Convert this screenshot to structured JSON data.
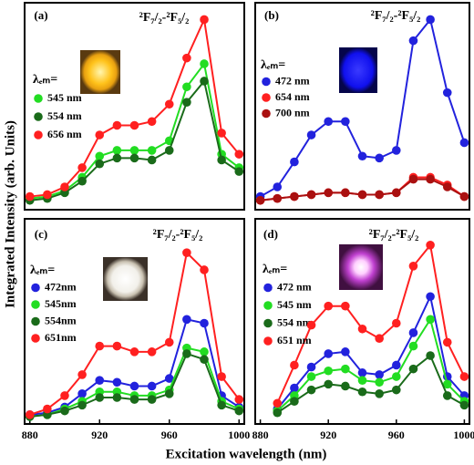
{
  "chart_data": [
    {
      "type": "line",
      "label": "(a)",
      "annotation": "²F₇/₂-²F₅/₂",
      "legend_title": "λₑₘ=",
      "x": [
        880,
        890,
        900,
        910,
        920,
        930,
        940,
        950,
        960,
        970,
        980,
        990,
        1000
      ],
      "xlim": [
        877,
        1003
      ],
      "ylim": [
        0,
        100
      ],
      "series": [
        {
          "name": "545 nm",
          "color": "#22dd22",
          "values": [
            3,
            4,
            7,
            14,
            25,
            28,
            28,
            28,
            33,
            61,
            73,
            26,
            19
          ]
        },
        {
          "name": "554 nm",
          "color": "#1a6b1a",
          "values": [
            2,
            3,
            6,
            12,
            21,
            24,
            24,
            23,
            28,
            53,
            64,
            23,
            17
          ]
        },
        {
          "name": "656 nm",
          "color": "#ff2020",
          "values": [
            4,
            5,
            9,
            19,
            36,
            41,
            41,
            43,
            52,
            76,
            96,
            37,
            26
          ]
        }
      ]
    },
    {
      "type": "line",
      "label": "(b)",
      "annotation": "²F₇/₂-²F₅/₂",
      "legend_title": "λₑₘ=",
      "x": [
        880,
        890,
        900,
        910,
        920,
        930,
        940,
        950,
        960,
        970,
        980,
        990,
        1000
      ],
      "xlim": [
        877,
        1003
      ],
      "ylim": [
        0,
        100
      ],
      "series": [
        {
          "name": "472 nm",
          "color": "#2222dd",
          "values": [
            4,
            9,
            22,
            36,
            43,
            43,
            25,
            24,
            28,
            85,
            96,
            58,
            32
          ]
        },
        {
          "name": "654 nm",
          "color": "#ff2020",
          "values": [
            2,
            3,
            4,
            5,
            6,
            6,
            5,
            5,
            6,
            14,
            14,
            10,
            4
          ]
        },
        {
          "name": "700 nm",
          "color": "#aa1010",
          "values": [
            2,
            3,
            4,
            5,
            6,
            6,
            5,
            5,
            6,
            13,
            13,
            9,
            4
          ]
        }
      ]
    },
    {
      "type": "line",
      "label": "(c)",
      "annotation": "²F₇/₂-²F₅/₂",
      "legend_title": "λₑₘ=",
      "x": [
        880,
        890,
        900,
        910,
        920,
        930,
        940,
        950,
        960,
        970,
        980,
        990,
        1000
      ],
      "xlim": [
        877,
        1003
      ],
      "ylim": [
        0,
        100
      ],
      "xticks": [
        880,
        920,
        960,
        1000
      ],
      "series": [
        {
          "name": "472nm",
          "color": "#2222dd",
          "values": [
            2,
            3,
            6,
            13,
            20,
            19,
            17,
            17,
            21,
            52,
            50,
            12,
            6
          ]
        },
        {
          "name": "545nm",
          "color": "#22dd22",
          "values": [
            1,
            2,
            5,
            9,
            14,
            14,
            12,
            12,
            15,
            37,
            35,
            9,
            5
          ]
        },
        {
          "name": "554nm",
          "color": "#1a6b1a",
          "values": [
            1,
            2,
            4,
            7,
            11,
            11,
            10,
            10,
            13,
            34,
            31,
            7,
            4
          ]
        },
        {
          "name": "651nm",
          "color": "#ff2020",
          "values": [
            2,
            5,
            12,
            23,
            38,
            38,
            35,
            35,
            40,
            87,
            78,
            22,
            10
          ]
        }
      ]
    },
    {
      "type": "line",
      "label": "(d)",
      "annotation": "²F₇/₂-²F₅/₂",
      "legend_title": "λₑₘ=",
      "x": [
        890,
        900,
        910,
        920,
        930,
        940,
        950,
        960,
        970,
        980,
        990,
        1000
      ],
      "xlim": [
        877,
        1003
      ],
      "ylim": [
        0,
        100
      ],
      "xticks": [
        880,
        920,
        960,
        1000
      ],
      "series": [
        {
          "name": "472 nm",
          "color": "#2222dd",
          "values": [
            5,
            16,
            27,
            34,
            35,
            24,
            23,
            28,
            45,
            64,
            22,
            12
          ]
        },
        {
          "name": "545 nm",
          "color": "#22dd22",
          "values": [
            4,
            12,
            22,
            25,
            26,
            20,
            19,
            22,
            38,
            52,
            18,
            9
          ]
        },
        {
          "name": "554 nm",
          "color": "#1a6b1a",
          "values": [
            3,
            9,
            15,
            18,
            17,
            14,
            13,
            15,
            26,
            33,
            12,
            7
          ]
        },
        {
          "name": "651 nm",
          "color": "#ff2020",
          "values": [
            8,
            28,
            49,
            59,
            59,
            47,
            42,
            50,
            80,
            91,
            40,
            22
          ]
        }
      ]
    }
  ],
  "ylabel": "Integrated Intensity (arb. Units)",
  "xlabel": "Excitation wavelength (nm)"
}
